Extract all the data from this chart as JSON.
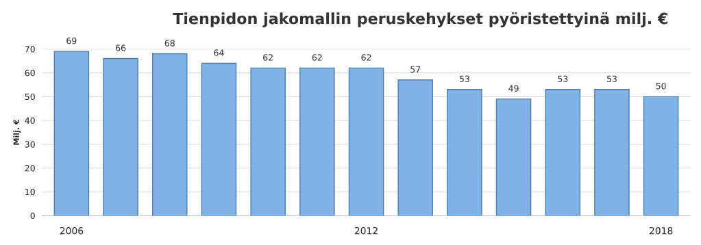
{
  "chart_data": {
    "type": "bar",
    "title": "Tienpidon jakomallin peruskehykset pyöristettyinä milj. €",
    "ylabel": "Milj. €",
    "categories": [
      "2006",
      null,
      null,
      null,
      null,
      null,
      "2012",
      null,
      null,
      null,
      null,
      null,
      "2018"
    ],
    "values": [
      69,
      66,
      68,
      64,
      62,
      62,
      62,
      57,
      53,
      49,
      53,
      53,
      50
    ],
    "color": "#7fb3e6",
    "ylim": [
      0,
      70
    ],
    "yticks": [
      0,
      10,
      20,
      30,
      40,
      50,
      60,
      70
    ],
    "grid": "y",
    "data_labels": true
  }
}
